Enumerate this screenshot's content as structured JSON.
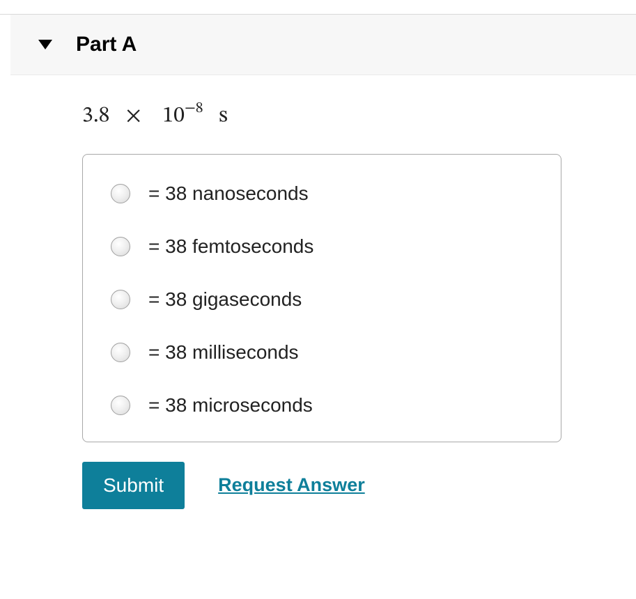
{
  "part": {
    "title": "Part A"
  },
  "question": {
    "coefficient": "3.8",
    "times_symbol": "×",
    "base": "10",
    "exponent": "−8",
    "unit": "s"
  },
  "options": [
    {
      "label": "= 38 nanoseconds"
    },
    {
      "label": "= 38 femtoseconds"
    },
    {
      "label": "= 38 gigaseconds"
    },
    {
      "label": "= 38 milliseconds"
    },
    {
      "label": "= 38 microseconds"
    }
  ],
  "actions": {
    "submit": "Submit",
    "request": "Request Answer"
  },
  "colors": {
    "accent": "#0e7f9a",
    "header_bg": "#f7f7f7",
    "border": "#a8a8a8",
    "text": "#222222"
  }
}
